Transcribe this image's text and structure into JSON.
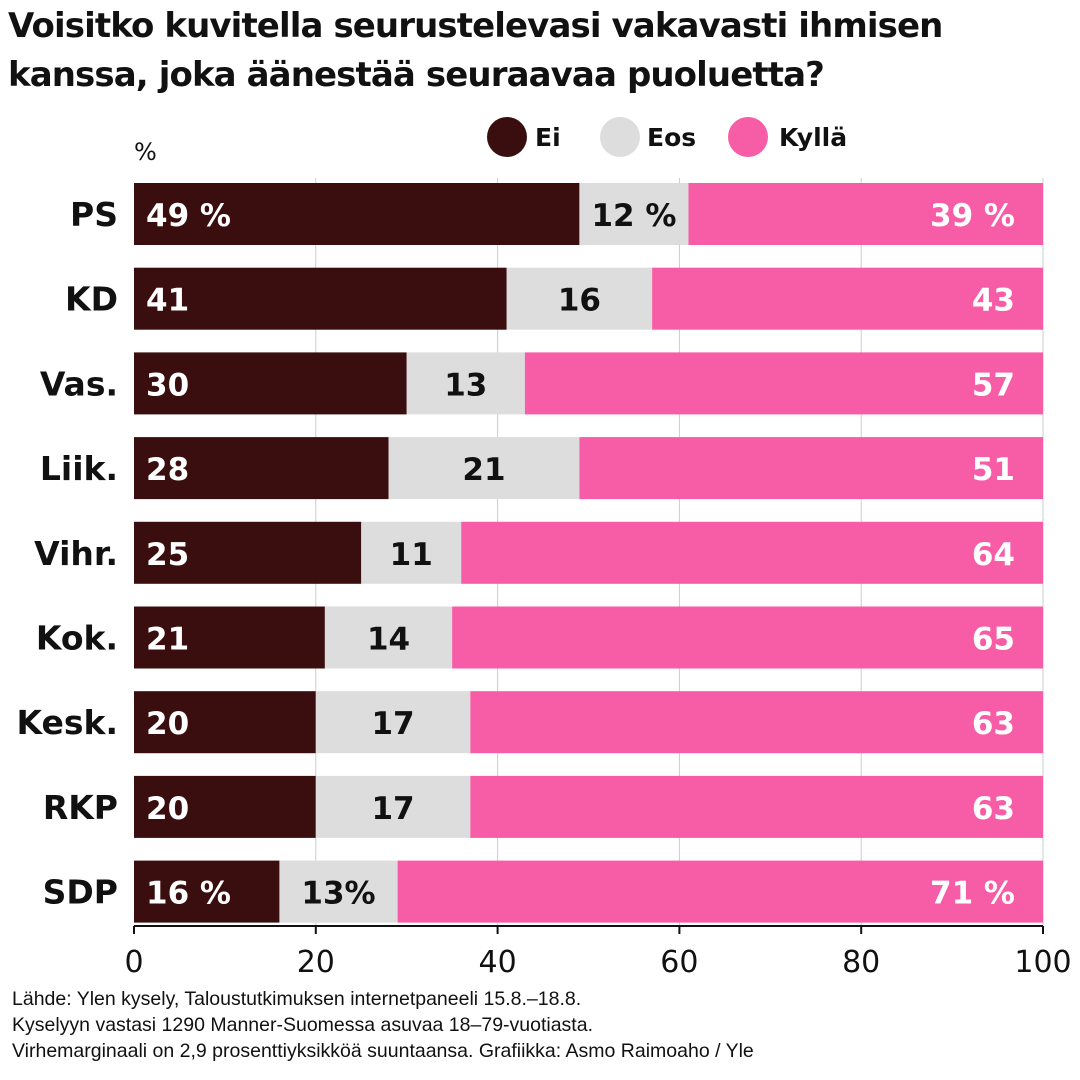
{
  "title": "Voisitko kuvitella seurustelevasi vakavasti ihmisen kanssa, joka äänestää seuraavaa puoluetta?",
  "colors": {
    "ei": "#3a0e0e",
    "eos": "#dddddd",
    "kylla": "#f75ca6",
    "grid": "#cccccc",
    "axis": "#111111"
  },
  "chart_data": {
    "type": "bar",
    "orientation": "horizontal",
    "stacked": true,
    "unit_label": "%",
    "categories": [
      "PS",
      "KD",
      "Vas.",
      "Liik.",
      "Vihr.",
      "Kok.",
      "Kesk.",
      "RKP",
      "SDP"
    ],
    "series": [
      {
        "name": "Ei",
        "values": [
          49,
          41,
          30,
          28,
          25,
          21,
          20,
          20,
          16
        ],
        "labels": [
          "49 %",
          "41",
          "30",
          "28",
          "25",
          "21",
          "20",
          "20",
          "16 %"
        ]
      },
      {
        "name": "Eos",
        "values": [
          12,
          16,
          13,
          21,
          11,
          14,
          17,
          17,
          13
        ],
        "labels": [
          "12 %",
          "16",
          "13",
          "21",
          "11",
          "14",
          "17",
          "17",
          "13%"
        ]
      },
      {
        "name": "Kyllä",
        "values": [
          39,
          43,
          57,
          51,
          64,
          65,
          63,
          63,
          71
        ],
        "labels": [
          "39 %",
          "43",
          "57",
          "51",
          "64",
          "65",
          "63",
          "63",
          "71 %"
        ]
      }
    ],
    "xlim": [
      0,
      100
    ],
    "xticks": [
      0,
      20,
      40,
      60,
      80,
      100
    ],
    "grid": true,
    "legend_position": "top"
  },
  "source": {
    "line1": "Lähde: Ylen kysely, Taloustutkimuksen internetpaneeli 15.8.–18.8.",
    "line2": "Kyselyyn vastasi 1290 Manner-Suomessa asuvaa 18–79-vuotiasta.",
    "line3": "Virhemarginaali on 2,9 prosenttiyksikköä suuntaansa. Grafiikka: Asmo Raimoaho / Yle"
  }
}
